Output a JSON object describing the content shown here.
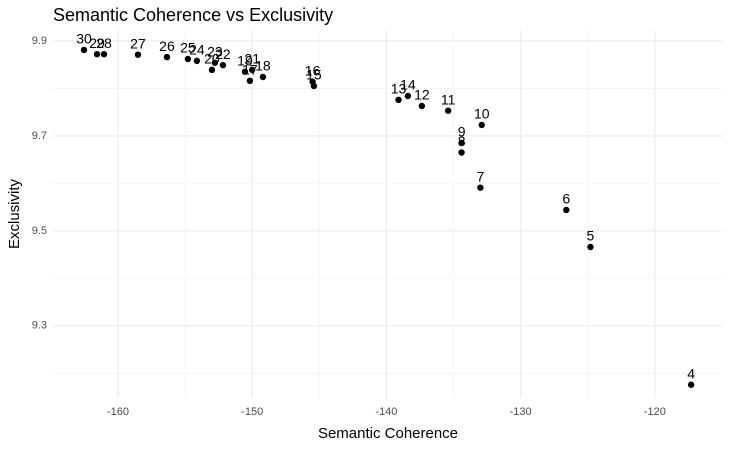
{
  "chart_data": {
    "type": "scatter",
    "title": "Semantic Coherence vs Exclusivity",
    "x_label": "Semantic Coherence",
    "y_label": "Exclusivity",
    "labels": [
      "30",
      "29",
      "28",
      "27",
      "26",
      "25",
      "24",
      "23",
      "22",
      "20",
      "19",
      "21",
      "17",
      "18",
      "16",
      "15",
      "14",
      "13",
      "12",
      "11",
      "10",
      "9",
      "8",
      "7",
      "6",
      "5",
      "4"
    ],
    "x": [
      -162.53,
      -161.56,
      -161.04,
      -158.51,
      -156.35,
      -154.79,
      -154.12,
      -152.78,
      -152.18,
      -153.0,
      -150.54,
      -150.0,
      -150.17,
      -149.2,
      -145.5,
      -145.4,
      -138.4,
      -139.1,
      -137.36,
      -135.4,
      -132.9,
      -134.4,
      -134.4,
      -133.0,
      -126.6,
      -124.8,
      -117.3
    ],
    "values": [
      9.881,
      9.872,
      9.872,
      9.871,
      9.866,
      9.862,
      9.858,
      9.854,
      9.849,
      9.839,
      9.835,
      9.839,
      9.816,
      9.824,
      9.814,
      9.805,
      9.784,
      9.776,
      9.763,
      9.753,
      9.723,
      9.685,
      9.665,
      9.591,
      9.544,
      9.466,
      9.176
    ],
    "color": "#000000",
    "xlim": [
      -164.84,
      -115.0
    ],
    "xticks": [
      -160,
      -150,
      -140,
      -130,
      -120
    ],
    "ylim": [
      9.148,
      9.923
    ],
    "yticks": [
      9.3,
      9.5,
      9.7,
      9.9
    ],
    "grid": true
  }
}
